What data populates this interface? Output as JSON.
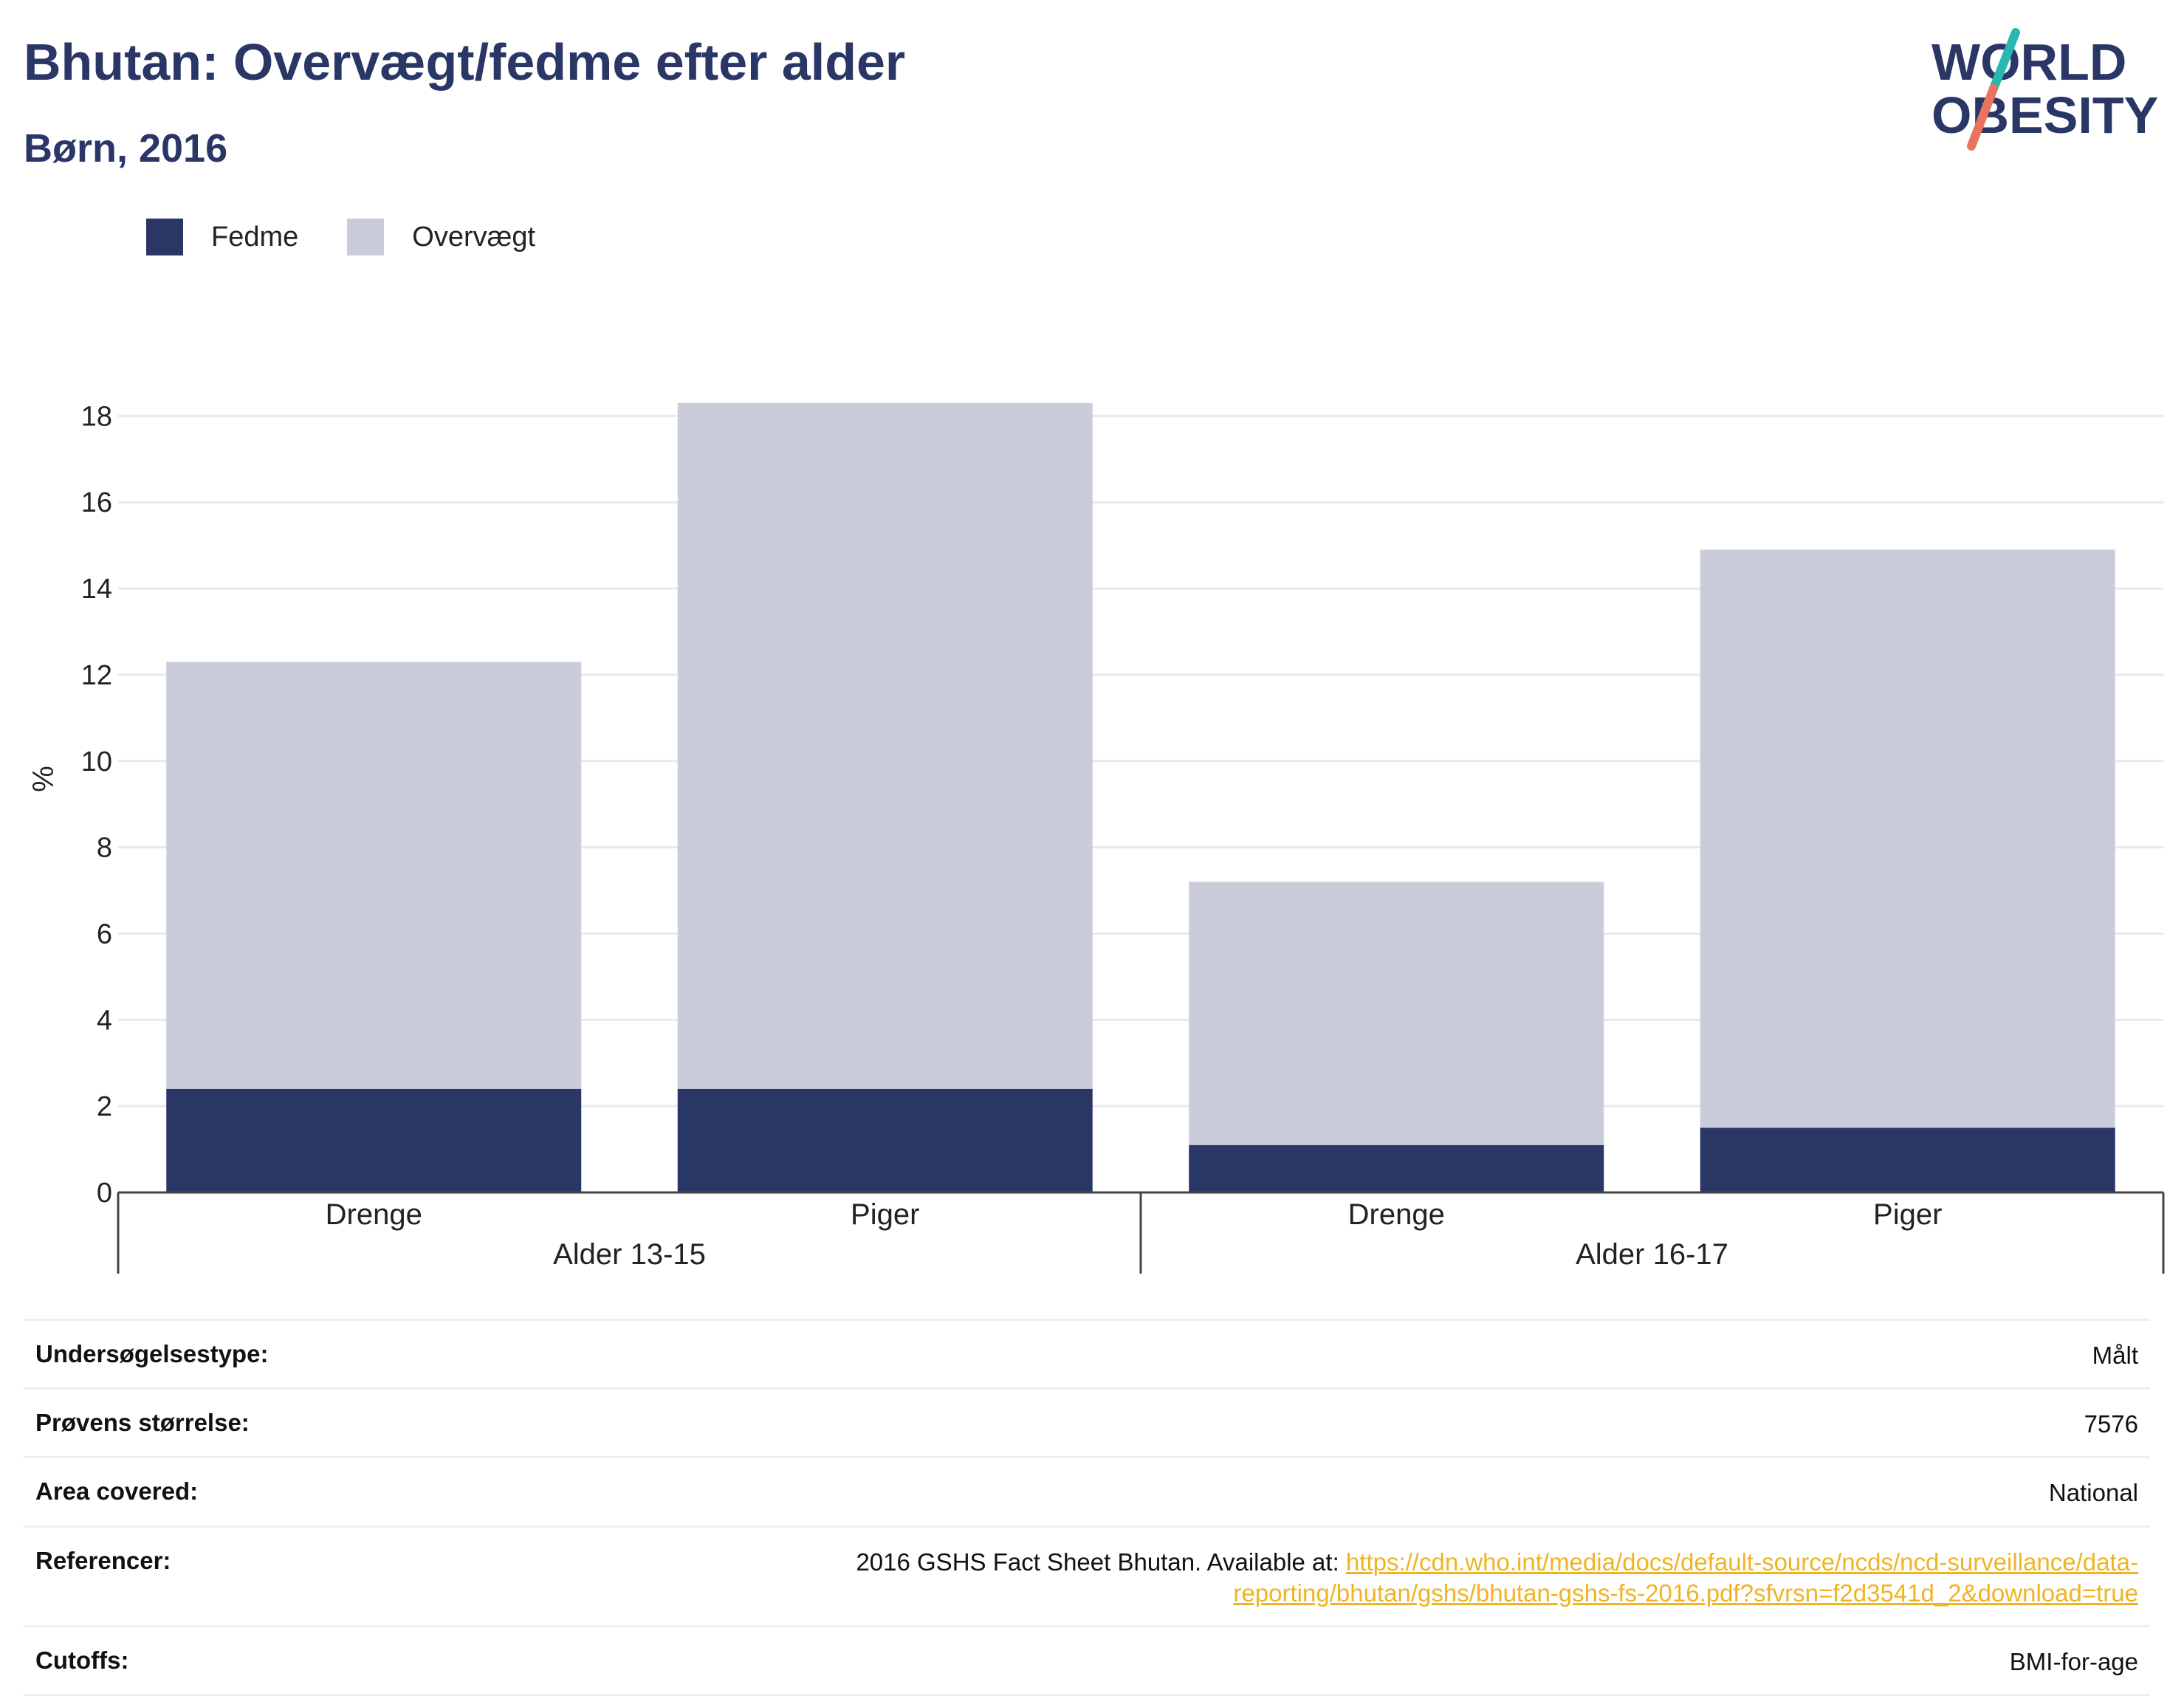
{
  "title": "Bhutan: Overvægt/fedme efter alder",
  "subtitle": "Børn, 2016",
  "logo": {
    "line1": "WORLD",
    "line2": "OBESITY"
  },
  "legend": [
    {
      "label": "Fedme",
      "color": "#2a3666"
    },
    {
      "label": "Overvægt",
      "color": "#cacdd9"
    }
  ],
  "chart_data": {
    "type": "bar",
    "stacked": true,
    "ylabel": "%",
    "ylim": [
      0,
      18.5
    ],
    "yticks": [
      0,
      2,
      4,
      6,
      8,
      10,
      12,
      14,
      16,
      18
    ],
    "grid": true,
    "legend_position": "top-left",
    "groups": [
      {
        "label": "Alder 13-15",
        "categories": [
          "Drenge",
          "Piger"
        ]
      },
      {
        "label": "Alder 16-17",
        "categories": [
          "Drenge",
          "Piger"
        ]
      }
    ],
    "categories": [
      "Drenge",
      "Piger",
      "Drenge",
      "Piger"
    ],
    "series": [
      {
        "name": "Fedme",
        "color": "#2a3666",
        "values": [
          2.4,
          2.4,
          1.1,
          1.5
        ]
      },
      {
        "name": "Overvægt",
        "color": "#cacdd9",
        "values": [
          9.9,
          15.9,
          6.1,
          13.4
        ]
      }
    ]
  },
  "info": [
    {
      "key": "Undersøgelsestype:",
      "value": "Målt"
    },
    {
      "key": "Prøvens størrelse:",
      "value": "7576"
    },
    {
      "key": "Area covered:",
      "value": "National"
    },
    {
      "key": "Referencer:",
      "value": "2016 GSHS Fact Sheet Bhutan. Available at: ",
      "link": "https://cdn.who.int/media/docs/default-source/ncds/ncd-surveillance/data-reporting/bhutan/gshs/bhutan-gshs-fs-2016.pdf?sfvrsn=f2d3541d_2&download=true"
    },
    {
      "key": "Cutoffs:",
      "value": "BMI-for-age"
    }
  ]
}
